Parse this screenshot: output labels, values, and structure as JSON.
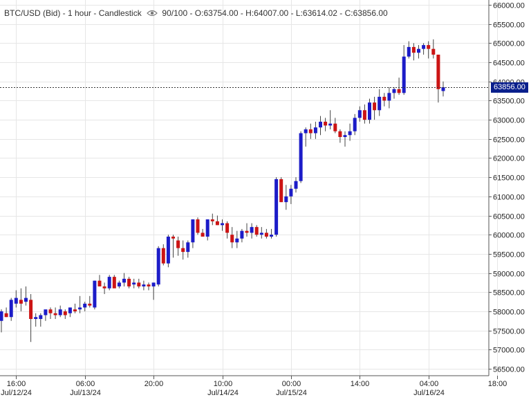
{
  "header": {
    "symbol": "BTC/USD (Bid) - 1 hour - Candlestick",
    "visibility": "90/100",
    "ohlc": "- O:63754.00 - H:64007.00 - L:63614.02 - C:63856.00"
  },
  "colors": {
    "up": "#1c1cc8",
    "down": "#cc1414",
    "wick": "#444444",
    "grid": "#e6e6e6",
    "tag": "#0a1f8c"
  },
  "icons": {
    "visibility": "eye-icon"
  },
  "chart_data": {
    "type": "candlestick",
    "ylim": [
      56250,
      66000
    ],
    "y_ticks": [
      "66000.00",
      "65500.00",
      "65000.00",
      "64500.00",
      "64000.00",
      "63500.00",
      "63000.00",
      "62500.00",
      "62000.00",
      "61500.00",
      "61000.00",
      "60500.00",
      "60000.00",
      "59500.00",
      "59000.00",
      "58500.00",
      "58000.00",
      "57500.00",
      "57000.00",
      "56500.00"
    ],
    "x_ticks": [
      {
        "time": "16:00",
        "date": "Jul/12/24"
      },
      {
        "time": "06:00",
        "date": "Jul/13/24"
      },
      {
        "time": "20:00",
        "date": ""
      },
      {
        "time": "10:00",
        "date": "Jul/14/24"
      },
      {
        "time": "00:00",
        "date": "Jul/15/24"
      },
      {
        "time": "14:00",
        "date": ""
      },
      {
        "time": "04:00",
        "date": "Jul/16/24"
      },
      {
        "time": "18:00",
        "date": ""
      }
    ],
    "last_price": "63856.00",
    "last_value": 63856,
    "candles": [
      [
        57750,
        58050,
        57450,
        58000
      ],
      [
        57950,
        58100,
        57850,
        57850
      ],
      [
        57850,
        58350,
        57750,
        58300
      ],
      [
        58200,
        58550,
        58100,
        58350
      ],
      [
        58300,
        58600,
        58000,
        58200
      ],
      [
        58250,
        58650,
        58150,
        58350
      ],
      [
        58300,
        58450,
        57200,
        57800
      ],
      [
        57800,
        57950,
        57600,
        57850
      ],
      [
        57800,
        57950,
        57600,
        57900
      ],
      [
        57900,
        58000,
        57750,
        58050
      ],
      [
        58050,
        58100,
        57800,
        57950
      ],
      [
        57950,
        58100,
        57800,
        57900
      ],
      [
        57900,
        58150,
        57850,
        58050
      ],
      [
        58000,
        58050,
        57800,
        57900
      ],
      [
        57950,
        58100,
        57850,
        58100
      ],
      [
        58050,
        58200,
        57950,
        58000
      ],
      [
        58050,
        58400,
        57950,
        58100
      ],
      [
        58100,
        58250,
        58000,
        58200
      ],
      [
        58200,
        58400,
        58100,
        58150
      ],
      [
        58100,
        58800,
        58050,
        58800
      ],
      [
        58800,
        58950,
        58700,
        58650
      ],
      [
        58650,
        58750,
        58450,
        58600
      ],
      [
        58600,
        58950,
        58550,
        58900
      ],
      [
        58900,
        58950,
        58650,
        58600
      ],
      [
        58650,
        58800,
        58600,
        58750
      ],
      [
        58750,
        59000,
        58650,
        58850
      ],
      [
        58850,
        58900,
        58600,
        58650
      ],
      [
        58700,
        58850,
        58600,
        58750
      ],
      [
        58750,
        58850,
        58600,
        58650
      ],
      [
        58650,
        58800,
        58550,
        58700
      ],
      [
        58700,
        58750,
        58550,
        58650
      ],
      [
        58650,
        58750,
        58300,
        58750
      ],
      [
        58700,
        59700,
        58650,
        59650
      ],
      [
        59650,
        59750,
        59200,
        59250
      ],
      [
        59250,
        60000,
        59150,
        59950
      ],
      [
        59950,
        60000,
        59400,
        59900
      ],
      [
        59850,
        59950,
        59450,
        59650
      ],
      [
        59650,
        59850,
        59350,
        59550
      ],
      [
        59550,
        59850,
        59400,
        59800
      ],
      [
        59800,
        60400,
        59650,
        60400
      ],
      [
        60400,
        60450,
        60000,
        60050
      ],
      [
        60050,
        60150,
        59950,
        59950
      ],
      [
        59950,
        60400,
        59850,
        60400
      ],
      [
        60400,
        60550,
        60250,
        60350
      ],
      [
        60350,
        60500,
        60250,
        60250
      ],
      [
        60250,
        60400,
        60100,
        60300
      ],
      [
        60300,
        60350,
        59900,
        60050
      ],
      [
        60000,
        60200,
        59650,
        59800
      ],
      [
        59800,
        60100,
        59650,
        59900
      ],
      [
        59900,
        60150,
        59800,
        60100
      ],
      [
        60100,
        60300,
        59950,
        60050
      ],
      [
        60050,
        60300,
        59900,
        60200
      ],
      [
        60200,
        60250,
        59950,
        60000
      ],
      [
        60000,
        60200,
        59900,
        60050
      ],
      [
        60050,
        60150,
        59900,
        59950
      ],
      [
        59950,
        60150,
        59900,
        60000
      ],
      [
        60000,
        61500,
        59950,
        61450
      ],
      [
        61450,
        61500,
        60850,
        60850
      ],
      [
        60850,
        61300,
        60650,
        61000
      ],
      [
        61000,
        61300,
        60800,
        61200
      ],
      [
        61200,
        61500,
        61100,
        61400
      ],
      [
        61400,
        62700,
        61350,
        62650
      ],
      [
        62650,
        62800,
        62300,
        62750
      ],
      [
        62750,
        62900,
        62500,
        62650
      ],
      [
        62650,
        62950,
        62500,
        62800
      ],
      [
        62800,
        63100,
        62600,
        62950
      ],
      [
        62950,
        63050,
        62700,
        62850
      ],
      [
        62850,
        63250,
        62750,
        62900
      ],
      [
        62900,
        63050,
        62650,
        62700
      ],
      [
        62700,
        62750,
        62400,
        62550
      ],
      [
        62550,
        62700,
        62300,
        62600
      ],
      [
        62600,
        62900,
        62450,
        62700
      ],
      [
        62700,
        63150,
        62600,
        63050
      ],
      [
        63050,
        63350,
        62950,
        63250
      ],
      [
        63250,
        63400,
        62900,
        63000
      ],
      [
        63000,
        63550,
        62900,
        63450
      ],
      [
        63450,
        63600,
        63000,
        63250
      ],
      [
        63250,
        63800,
        63100,
        63600
      ],
      [
        63600,
        63700,
        63350,
        63500
      ],
      [
        63500,
        63850,
        63300,
        63700
      ],
      [
        63700,
        63850,
        63550,
        63800
      ],
      [
        63800,
        64100,
        63650,
        63700
      ],
      [
        63700,
        64950,
        63650,
        64650
      ],
      [
        64650,
        65050,
        64600,
        64900
      ],
      [
        64900,
        65000,
        64550,
        64750
      ],
      [
        64750,
        64950,
        64600,
        64850
      ],
      [
        64850,
        65000,
        64700,
        64950
      ],
      [
        64950,
        65050,
        64600,
        64850
      ],
      [
        64850,
        65100,
        64600,
        64700
      ],
      [
        64700,
        64700,
        63450,
        63800
      ],
      [
        63750,
        64000,
        63610,
        63850
      ]
    ]
  }
}
